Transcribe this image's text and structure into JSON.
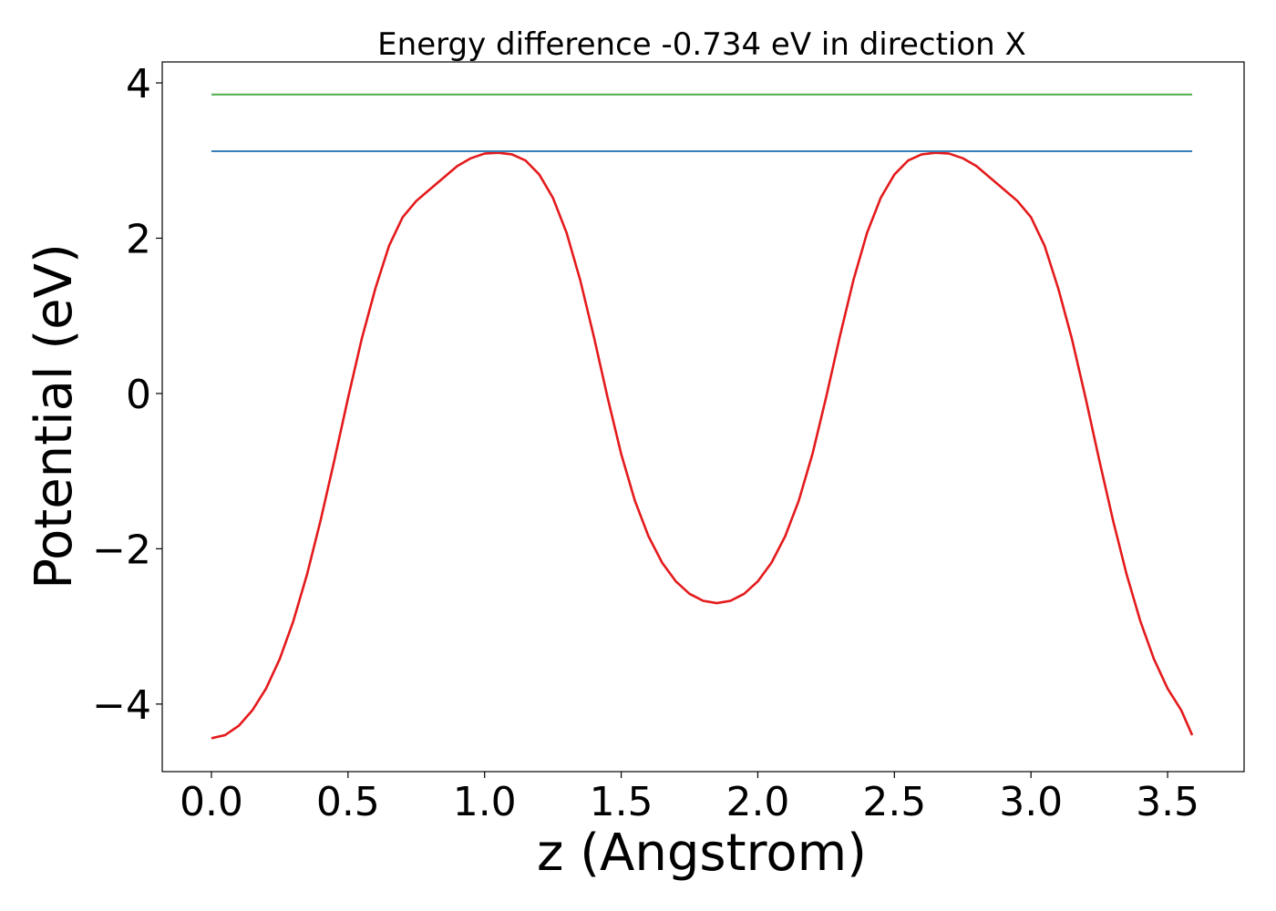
{
  "chart_data": {
    "type": "line",
    "title": "Energy difference -0.734 eV in direction X",
    "xlabel": "z (Angstrom)",
    "ylabel": "Potential (eV)",
    "xlim": [
      -0.18,
      3.78
    ],
    "ylim": [
      -4.87,
      4.27
    ],
    "xticks": [
      0.0,
      0.5,
      1.0,
      1.5,
      2.0,
      2.5,
      3.0,
      3.5
    ],
    "xtick_labels": [
      "0.0",
      "0.5",
      "1.0",
      "1.5",
      "2.0",
      "2.5",
      "3.0",
      "3.5"
    ],
    "yticks": [
      -4,
      -2,
      0,
      2,
      4
    ],
    "ytick_labels": [
      "−4",
      "−2",
      "0",
      "2",
      "4"
    ],
    "grid": false,
    "series": [
      {
        "color": "#e41a1c",
        "x": [
          0.0,
          0.05,
          0.1,
          0.15,
          0.2,
          0.25,
          0.3,
          0.35,
          0.4,
          0.45,
          0.5,
          0.55,
          0.6,
          0.65,
          0.7,
          0.75,
          0.8,
          0.85,
          0.9,
          0.95,
          1.0,
          1.05,
          1.1,
          1.15,
          1.2,
          1.25,
          1.3,
          1.35,
          1.4,
          1.45,
          1.5,
          1.55,
          1.6,
          1.65,
          1.7,
          1.75,
          1.8,
          1.85,
          1.9,
          1.95,
          2.0,
          2.05,
          2.1,
          2.15,
          2.2,
          2.25,
          2.3,
          2.35,
          2.4,
          2.45,
          2.5,
          2.55,
          2.6,
          2.65,
          2.7,
          2.75,
          2.8,
          2.85,
          2.9,
          2.95,
          3.0,
          3.05,
          3.1,
          3.15,
          3.2,
          3.25,
          3.3,
          3.35,
          3.4,
          3.45,
          3.5,
          3.55,
          3.59
        ],
        "y": [
          -4.44,
          -4.4,
          -4.28,
          -4.08,
          -3.8,
          -3.42,
          -2.93,
          -2.33,
          -1.63,
          -0.86,
          -0.06,
          0.7,
          1.35,
          1.9,
          2.27,
          2.48,
          2.63,
          2.78,
          2.93,
          3.03,
          3.09,
          3.1,
          3.08,
          3.0,
          2.82,
          2.52,
          2.07,
          1.46,
          0.73,
          -0.05,
          -0.78,
          -1.38,
          -1.84,
          -2.18,
          -2.42,
          -2.58,
          -2.67,
          -2.7,
          -2.67,
          -2.58,
          -2.42,
          -2.18,
          -1.84,
          -1.38,
          -0.78,
          -0.05,
          0.73,
          1.46,
          2.07,
          2.52,
          2.82,
          3.0,
          3.08,
          3.1,
          3.09,
          3.03,
          2.93,
          2.78,
          2.63,
          2.48,
          2.27,
          1.9,
          1.35,
          0.7,
          -0.06,
          -0.86,
          -1.63,
          -2.33,
          -2.93,
          -3.42,
          -3.8,
          -4.08,
          -4.4
        ]
      },
      {
        "color": "#377eb8",
        "x": [
          0.0,
          3.59
        ],
        "y": [
          3.12,
          3.12
        ]
      },
      {
        "color": "#4daf4a",
        "x": [
          0.0,
          3.59
        ],
        "y": [
          3.85,
          3.85
        ]
      }
    ]
  }
}
